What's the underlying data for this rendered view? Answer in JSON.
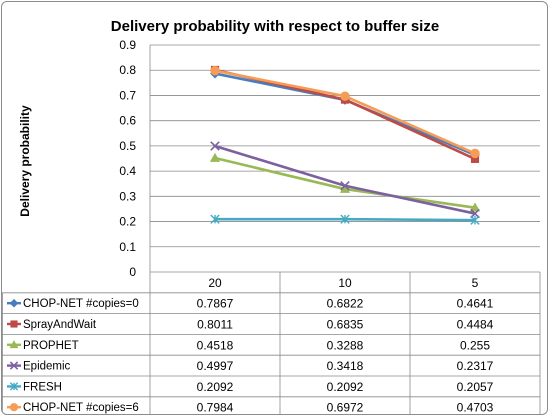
{
  "chart_data": {
    "type": "line",
    "title": "Delivery probability with respect to buffer size",
    "xlabel": "",
    "ylabel": "Delivery probability",
    "ylim": [
      0,
      0.9
    ],
    "yticks": [
      "0",
      "0.1",
      "0.2",
      "0.3",
      "0.4",
      "0.5",
      "0.6",
      "0.7",
      "0.8",
      "0.9"
    ],
    "grid": true,
    "legend_placement": "data-table-left",
    "categories": [
      "20",
      "10",
      "5"
    ],
    "series": [
      {
        "name": "CHOP-NET #copies=0",
        "marker": "diamond",
        "color": "#4a7ebb",
        "values": [
          0.7867,
          0.6822,
          0.4641
        ],
        "labels": [
          "0.7867",
          "0.6822",
          "0.4641"
        ]
      },
      {
        "name": "SprayAndWait",
        "marker": "square",
        "color": "#be4b48",
        "values": [
          0.8011,
          0.6835,
          0.4484
        ],
        "labels": [
          "0.8011",
          "0.6835",
          "0.4484"
        ]
      },
      {
        "name": "PROPHET",
        "marker": "triangle",
        "color": "#98b954",
        "values": [
          0.4518,
          0.3288,
          0.255
        ],
        "labels": [
          "0.4518",
          "0.3288",
          "0.255"
        ]
      },
      {
        "name": "Epidemic",
        "marker": "x",
        "color": "#7d60a0",
        "values": [
          0.4997,
          0.3418,
          0.2317
        ],
        "labels": [
          "0.4997",
          "0.3418",
          "0.2317"
        ]
      },
      {
        "name": "FRESH",
        "marker": "star",
        "color": "#46aac5",
        "values": [
          0.2092,
          0.2092,
          0.2057
        ],
        "labels": [
          "0.2092",
          "0.2092",
          "0.2057"
        ]
      },
      {
        "name": "CHOP-NET #copies=6",
        "marker": "circle",
        "color": "#f59d56",
        "values": [
          0.7984,
          0.6972,
          0.4703
        ],
        "labels": [
          "0.7984",
          "0.6972",
          "0.4703"
        ]
      }
    ]
  }
}
